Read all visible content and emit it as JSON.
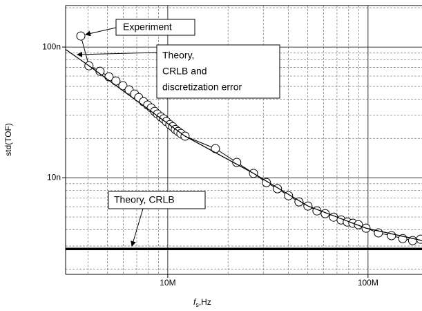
{
  "chart_data": {
    "type": "line",
    "ylabel": "std(TOF)",
    "xlabel": [
      "f",
      "s",
      ",Hz"
    ],
    "xscale": "log",
    "yscale": "log",
    "grid": true,
    "xlim": [
      3090000,
      186000000
    ],
    "ylim": [
      1.82e-09,
      2.08e-07
    ],
    "xticks": [
      {
        "value": 10000000,
        "label": "10M"
      },
      {
        "value": 100000000,
        "label": "100M"
      }
    ],
    "yticks": [
      {
        "value": 1e-08,
        "label": "10n"
      },
      {
        "value": 1e-07,
        "label": "100n"
      }
    ],
    "xminorticks": [
      4000000,
      5000000,
      6000000,
      7000000,
      8000000,
      9000000,
      20000000,
      30000000,
      40000000,
      50000000,
      60000000,
      70000000,
      80000000,
      90000000
    ],
    "yminorticks": [
      2e-09,
      3e-09,
      4e-09,
      5e-09,
      6e-09,
      7e-09,
      8e-09,
      9e-09,
      2e-08,
      3e-08,
      4e-08,
      5e-08,
      6e-08,
      7e-08,
      8e-08,
      9e-08,
      2e-07
    ],
    "series": [
      {
        "color": "#000000",
        "marker": "circle",
        "width": 1,
        "x": [
          3680000,
          4040000,
          4590000,
          5090000,
          5510000,
          5970000,
          6410000,
          6830000,
          7160000,
          7570000,
          7940000,
          8270000,
          8600000,
          8880000,
          9240000,
          9530000,
          9840000,
          10240000,
          10570000,
          10910000,
          11260000,
          11630000,
          12200000,
          17300000,
          22100000,
          26800000,
          31100000,
          35300000,
          40100000,
          45200000,
          50100000,
          55600000,
          61100000,
          67300000,
          73400000,
          78800000,
          84000000,
          89500000,
          97700000,
          112700000,
          131000000,
          149000000,
          167000000,
          183000000
        ],
        "values": [
          1.216e-07,
          7.19e-08,
          6.53e-08,
          5.92e-08,
          5.5e-08,
          5.06e-08,
          4.7e-08,
          4.37e-08,
          4.11e-08,
          3.82e-08,
          3.6e-08,
          3.42e-08,
          3.22e-08,
          3.07e-08,
          2.92e-08,
          2.82e-08,
          2.69e-08,
          2.55e-08,
          2.46e-08,
          2.34e-08,
          2.26e-08,
          2.18e-08,
          2.08e-08,
          1.67e-08,
          1.31e-08,
          1.08e-08,
          9.18e-09,
          8.23e-09,
          7.28e-09,
          6.53e-09,
          6.07e-09,
          5.57e-09,
          5.31e-09,
          4.99e-09,
          4.75e-09,
          4.58e-09,
          4.48e-09,
          4.37e-09,
          4.11e-09,
          3.78e-09,
          3.6e-09,
          3.42e-09,
          3.3e-09,
          3.38e-09
        ]
      },
      {
        "color": "#000000",
        "marker": "none",
        "width": 1.3,
        "x": [
          3090000,
          4040000,
          12200000,
          26800000,
          50100000,
          97700000,
          186000000
        ],
        "values": [
          9.6e-08,
          7.19e-08,
          2.08e-08,
          1.08e-08,
          6.07e-09,
          4.11e-09,
          3.3e-09
        ]
      },
      {
        "color": "#000000",
        "marker": "none",
        "width": 3.5,
        "x": [
          3090000,
          186000000
        ],
        "values": [
          2.85e-09,
          2.85e-09
        ]
      }
    ],
    "annotations": [
      {
        "text": "Experiment"
      },
      {
        "lines": [
          "Theory,",
          "CRLB and",
          "discretization error"
        ]
      },
      {
        "text": "Theory, CRLB"
      }
    ]
  }
}
